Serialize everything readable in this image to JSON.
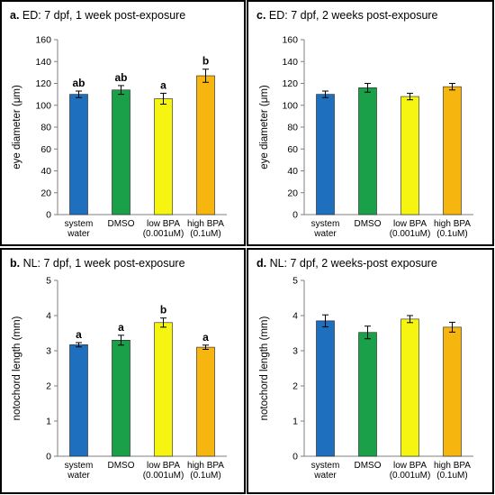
{
  "chart_data": [
    {
      "id": "a",
      "type": "bar",
      "title_letter": "a.",
      "title": "ED: 7 dpf, 1 week post-exposure",
      "xlabel": "",
      "ylabel": "eye diameter (μm)",
      "ylim": [
        0,
        160
      ],
      "yticks": [
        "0",
        "20",
        "40",
        "60",
        "80",
        "100",
        "120",
        "140",
        "160"
      ],
      "categories": [
        [
          "system",
          "water"
        ],
        [
          "DMSO"
        ],
        [
          "low BPA",
          "(0.001uM)"
        ],
        [
          "high BPA",
          "(0.1uM)"
        ]
      ],
      "values": [
        110,
        114,
        106,
        127
      ],
      "errors": [
        3,
        4,
        5,
        6
      ],
      "significance": [
        "ab",
        "ab",
        "a",
        "b"
      ],
      "colors": [
        "#1f6fbf",
        "#1aa048",
        "#f5f511",
        "#f7b50f"
      ],
      "grid": false,
      "legend": "none"
    },
    {
      "id": "c",
      "type": "bar",
      "title_letter": "c.",
      "title": "ED: 7 dpf, 2 weeks post-exposure",
      "xlabel": "",
      "ylabel": "eye diameter (μm)",
      "ylim": [
        0,
        160
      ],
      "yticks": [
        "0",
        "20",
        "40",
        "60",
        "80",
        "100",
        "120",
        "140",
        "160"
      ],
      "categories": [
        [
          "system",
          "water"
        ],
        [
          "DMSO"
        ],
        [
          "low BPA",
          "(0.001uM)"
        ],
        [
          "high BPA",
          "(0.1uM)"
        ]
      ],
      "values": [
        110,
        116,
        108,
        117
      ],
      "errors": [
        3,
        4,
        3,
        3
      ],
      "significance": [
        "",
        "",
        "",
        ""
      ],
      "colors": [
        "#1f6fbf",
        "#1aa048",
        "#f5f511",
        "#f7b50f"
      ],
      "grid": false,
      "legend": "none"
    },
    {
      "id": "b",
      "type": "bar",
      "title_letter": "b.",
      "title": "NL: 7 dpf, 1 week post-exposure",
      "xlabel": "",
      "ylabel": "notochord length (mm)",
      "ylim": [
        0,
        5
      ],
      "yticks": [
        "0",
        "1",
        "2",
        "3",
        "4",
        "5"
      ],
      "categories": [
        [
          "system",
          "water"
        ],
        [
          "DMSO"
        ],
        [
          "low BPA",
          "(0.001uM)"
        ],
        [
          "high BPA",
          "(0.1uM)"
        ]
      ],
      "values": [
        3.17,
        3.3,
        3.8,
        3.1
      ],
      "errors": [
        0.06,
        0.14,
        0.13,
        0.06
      ],
      "significance": [
        "a",
        "a",
        "b",
        "a"
      ],
      "colors": [
        "#1f6fbf",
        "#1aa048",
        "#f5f511",
        "#f7b50f"
      ],
      "grid": false,
      "legend": "none"
    },
    {
      "id": "d",
      "type": "bar",
      "title_letter": "d.",
      "title": "NL: 7 dpf, 2 weeks-post exposure",
      "xlabel": "",
      "ylabel": "notochord length (mm)",
      "ylim": [
        0,
        5
      ],
      "yticks": [
        "0",
        "1",
        "2",
        "3",
        "4",
        "5"
      ],
      "categories": [
        [
          "system",
          "water"
        ],
        [
          "DMSO"
        ],
        [
          "low BPA",
          "(0.001uM)"
        ],
        [
          "high BPA",
          "(0.1uM)"
        ]
      ],
      "values": [
        3.85,
        3.52,
        3.9,
        3.67
      ],
      "errors": [
        0.17,
        0.18,
        0.1,
        0.14
      ],
      "significance": [
        "",
        "",
        "",
        ""
      ],
      "colors": [
        "#1f6fbf",
        "#1aa048",
        "#f5f511",
        "#f7b50f"
      ],
      "grid": false,
      "legend": "none"
    }
  ]
}
